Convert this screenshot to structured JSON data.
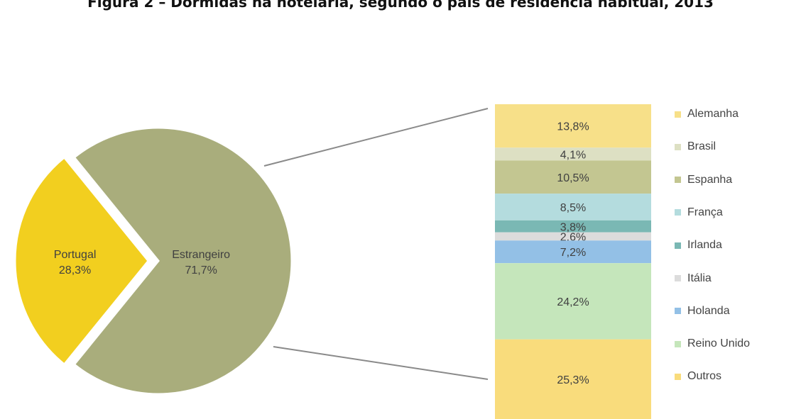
{
  "title": "Figura 2 – Dormidas na hotelaria, segundo o país de residência habitual, 2013",
  "chart_data": [
    {
      "type": "pie",
      "slices": [
        {
          "name": "Portugal",
          "value": 28.3,
          "label": "Portugal",
          "value_label": "28,3%",
          "color": "#f2cf1f"
        },
        {
          "name": "Estrangeiro",
          "value": 71.7,
          "label": "Estrangeiro",
          "value_label": "71,7%",
          "color": "#a9ad7c"
        }
      ]
    },
    {
      "type": "bar",
      "stacked": true,
      "note_parent": "Estrangeiro",
      "segments": [
        {
          "name": "Alemanha",
          "value": 13.8,
          "value_label": "13,8%",
          "color": "#f7e089"
        },
        {
          "name": "Brasil",
          "value": 4.1,
          "value_label": "4,1%",
          "color": "#dde0c3"
        },
        {
          "name": "Espanha",
          "value": 10.5,
          "value_label": "10,5%",
          "color": "#c3c691"
        },
        {
          "name": "França",
          "value": 8.5,
          "value_label": "8,5%",
          "color": "#b4dcde"
        },
        {
          "name": "Irlanda",
          "value": 3.8,
          "value_label": "3,8%",
          "color": "#7ab8b4"
        },
        {
          "name": "Itália",
          "value": 2.6,
          "value_label": "2,6%",
          "color": "#dcdcdc"
        },
        {
          "name": "Holanda",
          "value": 7.2,
          "value_label": "7,2%",
          "color": "#93c0e6"
        },
        {
          "name": "Reino Unido",
          "value": 24.2,
          "value_label": "24,2%",
          "color": "#c5e6bb"
        },
        {
          "name": "Outros",
          "value": 25.3,
          "value_label": "25,3%",
          "color": "#f9dc7c"
        }
      ],
      "legend_position": "right"
    }
  ]
}
